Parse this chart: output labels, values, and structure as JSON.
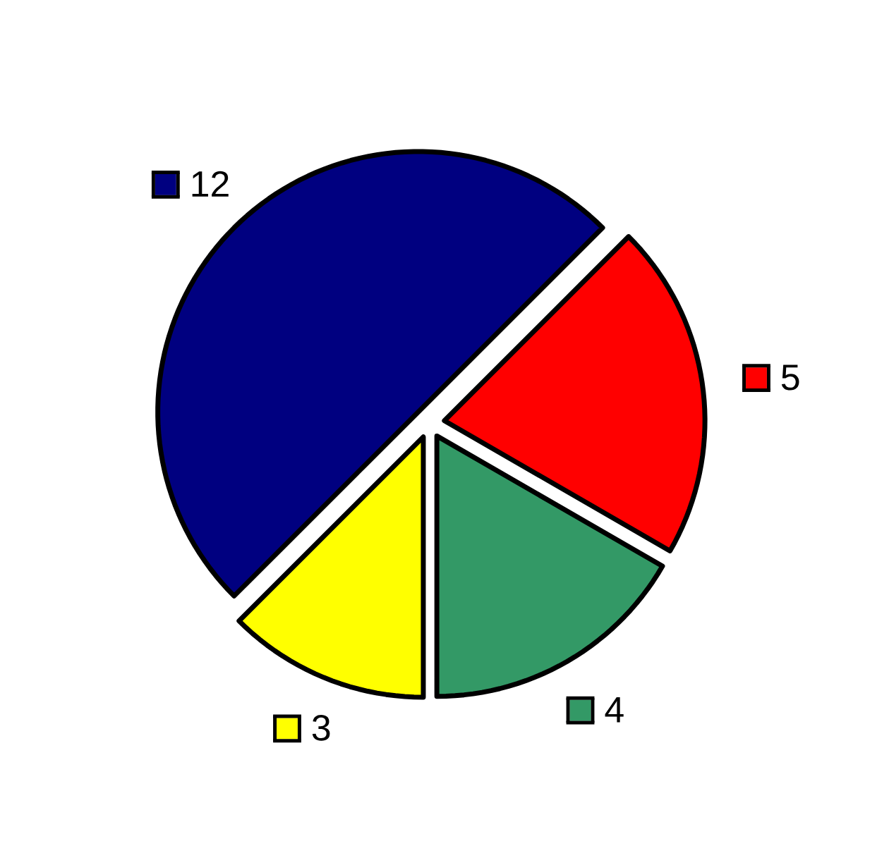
{
  "chart_data": {
    "type": "pie",
    "categories": [
      null,
      null,
      null,
      null
    ],
    "values": [
      12,
      5,
      4,
      3
    ],
    "colors": [
      "#000080",
      "#ff0000",
      "#339966",
      "#ffff00"
    ],
    "data_labels": true
  }
}
